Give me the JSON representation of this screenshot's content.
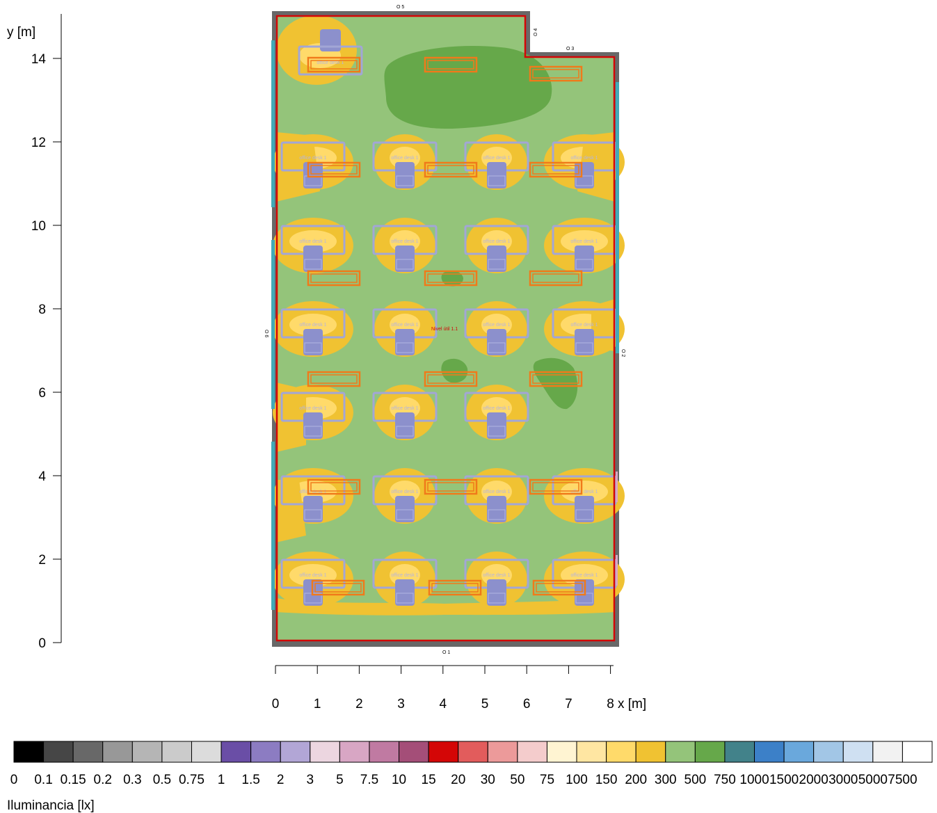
{
  "y_axis": {
    "label": "y [m]",
    "ticks": [
      "0",
      "2",
      "4",
      "6",
      "8",
      "10",
      "12",
      "14"
    ]
  },
  "x_axis": {
    "label": "x [m]",
    "ticks": [
      "0",
      "1",
      "2",
      "3",
      "4",
      "5",
      "6",
      "7",
      "8"
    ]
  },
  "wall_labels": {
    "o1": "O 1",
    "o2": "O 2",
    "o3": "O 3",
    "o4": "O 4",
    "o5": "O 5",
    "o6": "O 6"
  },
  "calc_surface_label": "Nivel útil 1.1",
  "desk_label": "office desk 1",
  "legend": {
    "title": "Iluminancia [lx]",
    "labels": [
      "0",
      "0.1",
      "0.15",
      "0.2",
      "0.3",
      "0.5",
      "0.75",
      "1",
      "1.5",
      "2",
      "3",
      "5",
      "7.5",
      "10",
      "15",
      "20",
      "30",
      "50",
      "75",
      "100",
      "150",
      "200",
      "300",
      "500",
      "750",
      "1000",
      "1500",
      "2000",
      "3000",
      "5000",
      "7500"
    ],
    "colors": [
      "#000000",
      "#464646",
      "#686868",
      "#989898",
      "#b5b5b5",
      "#cbcbcb",
      "#dcdcdc",
      "#6a4ea6",
      "#8c7cc2",
      "#b2a6d6",
      "#ecd6e0",
      "#d8a6c4",
      "#c07aa2",
      "#a44e78",
      "#d40606",
      "#e25c5c",
      "#ec9a9a",
      "#f4cccc",
      "#fff4d2",
      "#ffe6a2",
      "#ffda6a",
      "#f0c232",
      "#94c47a",
      "#66a84a",
      "#42828a",
      "#3c80c8",
      "#6aa8dc",
      "#a2c6e6",
      "#cfe0f2",
      "#f2f2f2",
      "#ffffff"
    ]
  },
  "colors": {
    "floor": "#94c47a",
    "high_zone": "#66a84a",
    "warm_zone": "#f0c232",
    "light_zone": "#ffda6a",
    "wall": "#686868",
    "boundary": "#d40606",
    "window": "#42aab8",
    "desk": "#a2a6d6",
    "chair": "#8c90cc",
    "luminaire": "#f07a1a",
    "label_red": "#d40606"
  }
}
